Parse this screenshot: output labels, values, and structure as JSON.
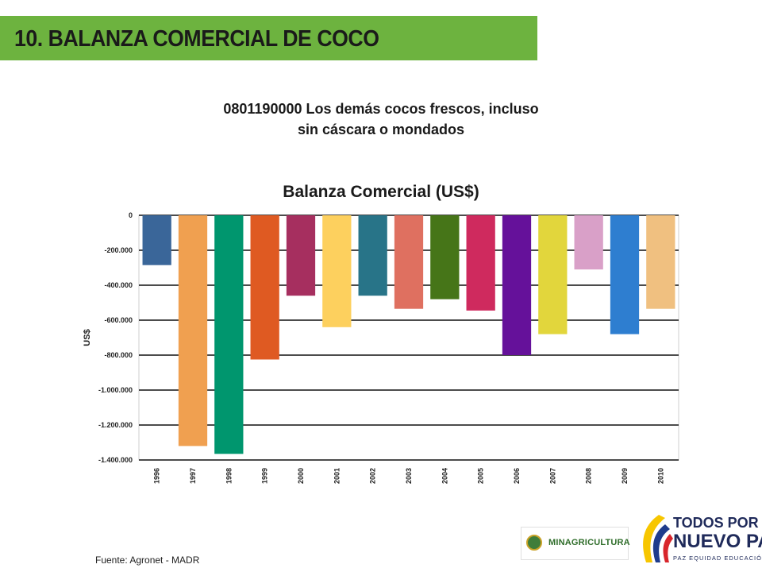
{
  "slide": {
    "title": "10. BALANZA COMERCIAL DE COCO",
    "subtitle_line1": "0801190000 Los demás cocos frescos, incluso",
    "subtitle_line2": "sin cáscara o mondados",
    "source": "Fuente: Agronet - MADR"
  },
  "logos": {
    "ministry": "MINAGRICULTURA",
    "gov_line1": "TODOS POR UN",
    "gov_line2": "NUEVO PAÍS",
    "gov_line3": "PAZ  EQUIDAD  EDUCACIÓN"
  },
  "chart_data": {
    "type": "bar",
    "title": "Balanza Comercial (US$)",
    "xlabel": "",
    "ylabel": "US$",
    "ylim": [
      -1400000,
      0
    ],
    "yticks": [
      0,
      -200000,
      -400000,
      -600000,
      -800000,
      -1000000,
      -1200000,
      -1400000
    ],
    "ytick_labels": [
      "0",
      "-200.000",
      "-400.000",
      "-600.000",
      "-800.000",
      "-1.000.000",
      "-1.200.000",
      "-1.400.000"
    ],
    "grid": true,
    "categories": [
      "1996",
      "1997",
      "1998",
      "1999",
      "2000",
      "2001",
      "2002",
      "2003",
      "2004",
      "2005",
      "2006",
      "2007",
      "2008",
      "2009",
      "2010"
    ],
    "values": [
      -285000,
      -1320000,
      -1365000,
      -825000,
      -460000,
      -640000,
      -460000,
      -535000,
      -480000,
      -545000,
      -800000,
      -680000,
      -310000,
      -680000,
      -535000
    ],
    "colors": [
      "#3a6699",
      "#f0a050",
      "#00966e",
      "#df5a22",
      "#a62f5f",
      "#fdd05e",
      "#287488",
      "#df7060",
      "#467518",
      "#cf2a5e",
      "#65119a",
      "#e2d63c",
      "#d9a0c8",
      "#2e7ed0",
      "#f0c080"
    ]
  }
}
